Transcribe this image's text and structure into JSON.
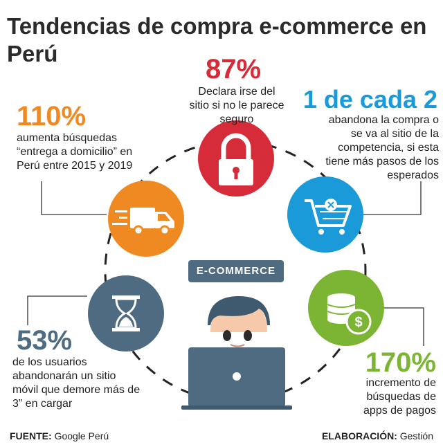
{
  "title": "Tendencias de compra e-commerce en Perú",
  "center_badge": "E-COMMERCE",
  "stats": {
    "secure": {
      "value": "87%",
      "text": "Declara irse del sitio si no le parece seguro",
      "color": "#d62b38"
    },
    "cart": {
      "value": "1 de cada 2",
      "text": "abandona la compra o se va al sitio de la competencia, si esta tiene más pasos de los esperados",
      "color": "#1a9ad8"
    },
    "delivery": {
      "value": "110%",
      "text": "aumenta búsquedas “entrega a domicilio” en Perú entre 2015 y 2019",
      "color": "#ef8a22"
    },
    "mobile": {
      "value": "53%",
      "text": "de los usuarios abandonarán un sitio móvil que demore más de 3” en cargar",
      "color": "#4e6b82"
    },
    "payments": {
      "value": "170%",
      "text": "incremento de búsquedas de apps de pagos",
      "color": "#7cb533"
    }
  },
  "footer": {
    "source_label": "FUENTE:",
    "source": "Google Perú",
    "credit_label": "ELABORACIÓN:",
    "credit": "Gestión"
  },
  "icons": [
    "lock-icon",
    "shopping-cart-icon",
    "delivery-truck-icon",
    "hourglass-icon",
    "coins-dollar-icon",
    "person-laptop-icon"
  ]
}
